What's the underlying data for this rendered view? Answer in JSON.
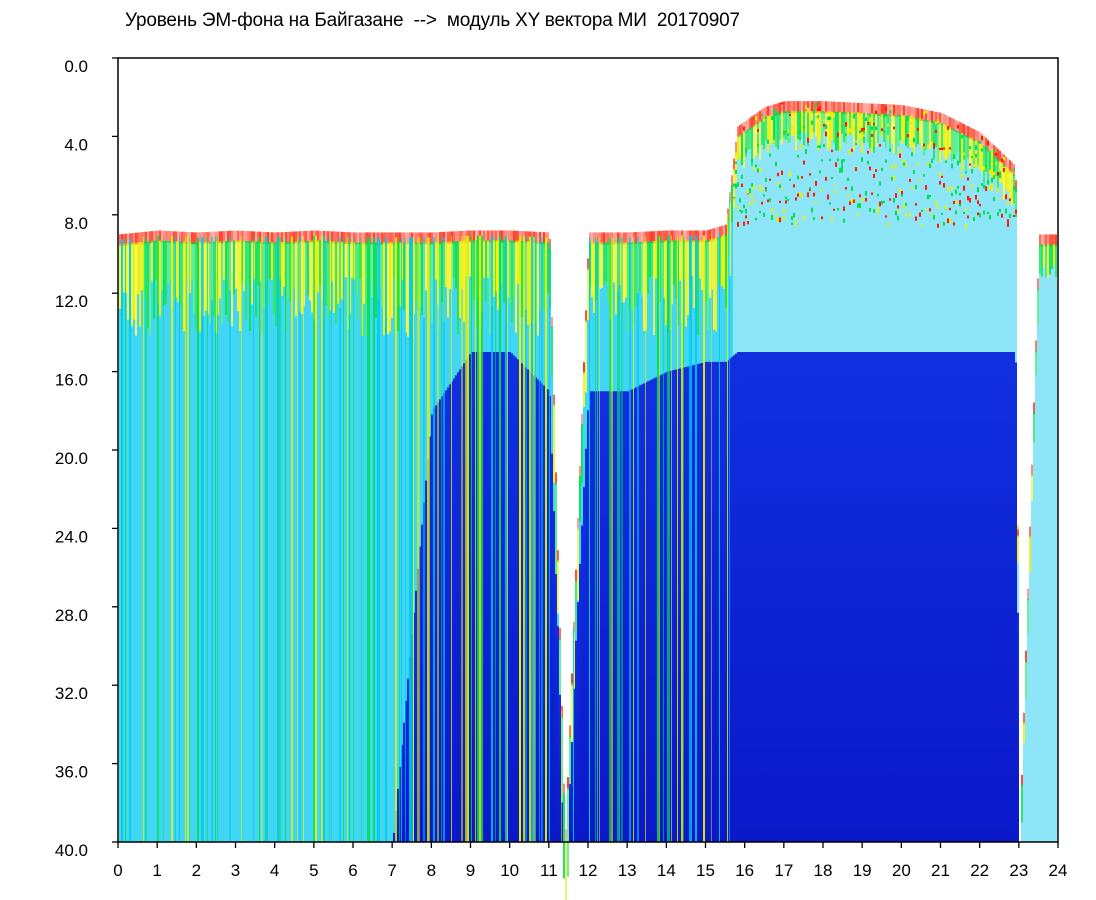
{
  "chart_data": {
    "type": "heatmap",
    "title": "Уровень ЭМ-фона на Байгазане  -->  модуль XY вектора МИ  20170907",
    "xlabel": "",
    "ylabel": "",
    "xlim": [
      0,
      24
    ],
    "ylim": [
      40.0,
      0.0
    ],
    "y_inverted": true,
    "x_tick_labels": [
      "0",
      "1",
      "2",
      "3",
      "4",
      "5",
      "6",
      "7",
      "8",
      "9",
      "10",
      "11",
      "12",
      "13",
      "14",
      "15",
      "16",
      "17",
      "18",
      "19",
      "20",
      "21",
      "22",
      "23",
      "24"
    ],
    "y_tick_labels": [
      "0.0",
      "4.0",
      "8.0",
      "12.0",
      "16.0",
      "20.0",
      "24.0",
      "28.0",
      "32.0",
      "36.0",
      "40.0"
    ],
    "grid": false,
    "colormap": {
      "low": "#0a1fd6",
      "mid_low": "#00c8f0",
      "mid": "#00e050",
      "mid_high": "#e8f000",
      "high": "#ff1a00"
    },
    "background": "#ffffff",
    "profile": {
      "x": [
        0.0,
        1.0,
        2.0,
        3.0,
        4.0,
        5.0,
        6.0,
        7.0,
        8.0,
        9.0,
        10.0,
        11.0,
        11.4,
        12.0,
        13.0,
        14.0,
        15.0,
        15.5,
        15.8,
        16.5,
        17.0,
        18.0,
        19.0,
        20.0,
        21.0,
        22.0,
        22.9,
        23.0,
        23.5,
        24.0
      ],
      "signal_top": [
        9.0,
        8.8,
        8.9,
        8.8,
        8.9,
        8.8,
        8.9,
        8.9,
        8.9,
        8.8,
        8.8,
        8.9,
        40.0,
        8.9,
        8.9,
        8.8,
        8.8,
        8.5,
        3.5,
        2.5,
        2.2,
        2.2,
        2.3,
        2.4,
        2.8,
        3.8,
        5.5,
        40.0,
        9.0,
        9.0
      ],
      "cyan_band_bottom": [
        40.0,
        40.0,
        40.0,
        40.0,
        40.0,
        40.0,
        40.0,
        40.0,
        18.0,
        15.0,
        15.0,
        17.0,
        40.0,
        17.0,
        17.0,
        16.0,
        15.5,
        15.5,
        15.0,
        15.0,
        15.0,
        15.0,
        15.0,
        15.0,
        15.0,
        15.0,
        15.0,
        40.0,
        40.0,
        40.0
      ]
    },
    "notes": [
      "signal gap near 11.4",
      "signal gap at 23.0-23.3"
    ]
  }
}
